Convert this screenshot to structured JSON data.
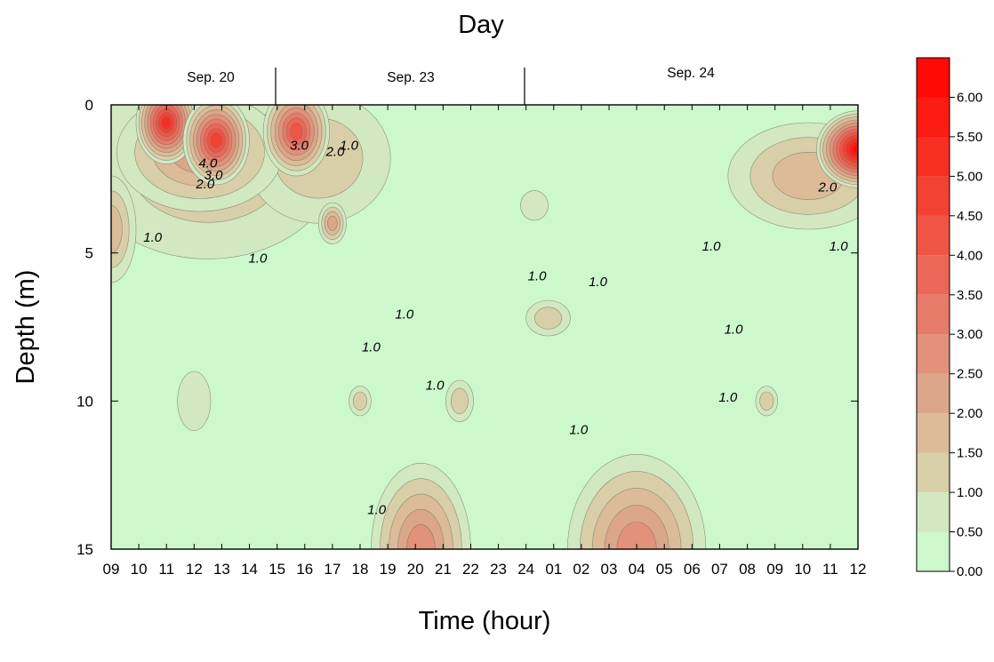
{
  "chart_data": {
    "type": "heatmap",
    "subtype": "filled-contour",
    "title": "Day",
    "xlabel": "Time (hour)",
    "ylabel": "Depth (m)",
    "x_tick_labels": [
      "09",
      "10",
      "11",
      "12",
      "13",
      "14",
      "15",
      "16",
      "17",
      "18",
      "19",
      "20",
      "21",
      "22",
      "23",
      "24",
      "01",
      "02",
      "03",
      "04",
      "05",
      "06",
      "07",
      "08",
      "09",
      "10",
      "11",
      "12"
    ],
    "y_ticks": [
      0,
      5,
      10,
      15
    ],
    "ylim": [
      15,
      0
    ],
    "y_inverted": true,
    "days": [
      "Sep. 20",
      "Sep. 23",
      "Sep. 24"
    ],
    "colorbar": {
      "levels": [
        "0.00",
        "0.50",
        "1.00",
        "1.50",
        "2.00",
        "2.50",
        "3.00",
        "3.50",
        "4.00",
        "4.50",
        "5.00",
        "5.50",
        "6.00"
      ],
      "colors": [
        "#ccf8cc",
        "#d1e8c1",
        "#d8cfa9",
        "#dbbb98",
        "#dba68a",
        "#e2917b",
        "#e67b6a",
        "#eb6758",
        "#ef5445",
        "#f34133",
        "#f72f23",
        "#fb1c13",
        "#ff0a05"
      ]
    },
    "contour_labels": [
      {
        "text": "1.0",
        "x": 1.5,
        "y": 4.5
      },
      {
        "text": "1.0",
        "x": 5.3,
        "y": 5.2
      },
      {
        "text": "2.0",
        "x": 3.4,
        "y": 2.7
      },
      {
        "text": "3.0",
        "x": 3.7,
        "y": 2.4
      },
      {
        "text": "4.0",
        "x": 3.5,
        "y": 2.0
      },
      {
        "text": "3.0",
        "x": 6.8,
        "y": 1.4
      },
      {
        "text": "2.0",
        "x": 8.1,
        "y": 1.6
      },
      {
        "text": "1.0",
        "x": 8.6,
        "y": 1.4
      },
      {
        "text": "1.0",
        "x": 9.4,
        "y": 8.2
      },
      {
        "text": "1.0",
        "x": 10.6,
        "y": 7.1
      },
      {
        "text": "1.0",
        "x": 11.7,
        "y": 9.5
      },
      {
        "text": "1.0",
        "x": 15.4,
        "y": 5.8
      },
      {
        "text": "1.0",
        "x": 17.6,
        "y": 6.0
      },
      {
        "text": "1.0",
        "x": 16.9,
        "y": 11.0
      },
      {
        "text": "1.0",
        "x": 9.6,
        "y": 13.7
      },
      {
        "text": "1.0",
        "x": 21.7,
        "y": 4.8
      },
      {
        "text": "1.0",
        "x": 22.5,
        "y": 7.6
      },
      {
        "text": "1.0",
        "x": 22.3,
        "y": 9.9
      },
      {
        "text": "2.0",
        "x": 25.9,
        "y": 2.8
      },
      {
        "text": "1.0",
        "x": 26.3,
        "y": 4.8
      }
    ]
  }
}
